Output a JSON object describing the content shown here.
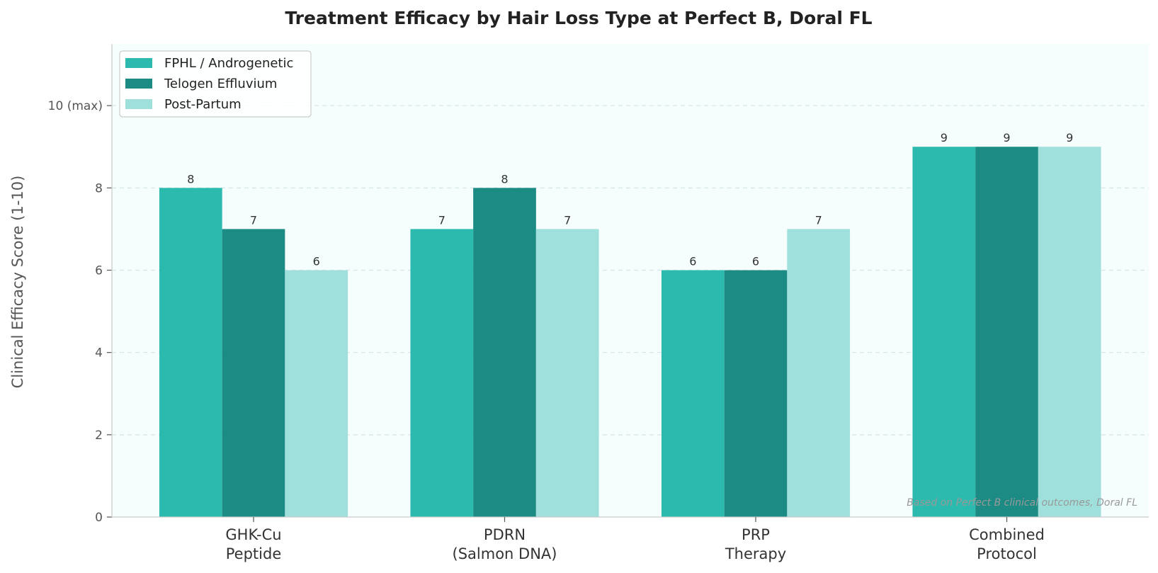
{
  "chart_data": {
    "type": "bar",
    "title": "Treatment Efficacy by Hair Loss Type at Perfect B, Doral FL",
    "xlabel": "",
    "ylabel": "Clinical Efficacy Score (1-10)",
    "categories": [
      [
        "GHK-Cu",
        "Peptide"
      ],
      [
        "PDRN",
        "(Salmon DNA)"
      ],
      [
        "PRP",
        "Therapy"
      ],
      [
        "Combined",
        "Protocol"
      ]
    ],
    "series": [
      {
        "name": "FPHL / Androgenetic",
        "values": [
          8,
          7,
          6,
          9
        ],
        "color": "#2bbaad"
      },
      {
        "name": "Telogen Effluvium",
        "values": [
          7,
          8,
          6,
          9
        ],
        "color": "#1b8b84"
      },
      {
        "name": "Post-Partum",
        "values": [
          6,
          7,
          7,
          9
        ],
        "color": "#9fe0dc"
      }
    ],
    "ylim": [
      0,
      11.5
    ],
    "yticks": [
      {
        "value": 0,
        "label": "0"
      },
      {
        "value": 2,
        "label": "2"
      },
      {
        "value": 4,
        "label": "4"
      },
      {
        "value": 6,
        "label": "6"
      },
      {
        "value": 8,
        "label": "8"
      },
      {
        "value": 10,
        "label": "10 (max)"
      }
    ],
    "grid": "y-dashed",
    "legend_position": "top-left",
    "annotation": "Based on Perfect B clinical outcomes, Doral FL",
    "colors": {
      "plot_background": "#f5fdfd",
      "grid": "#d8e8e8",
      "axis": "#cccccc"
    }
  }
}
